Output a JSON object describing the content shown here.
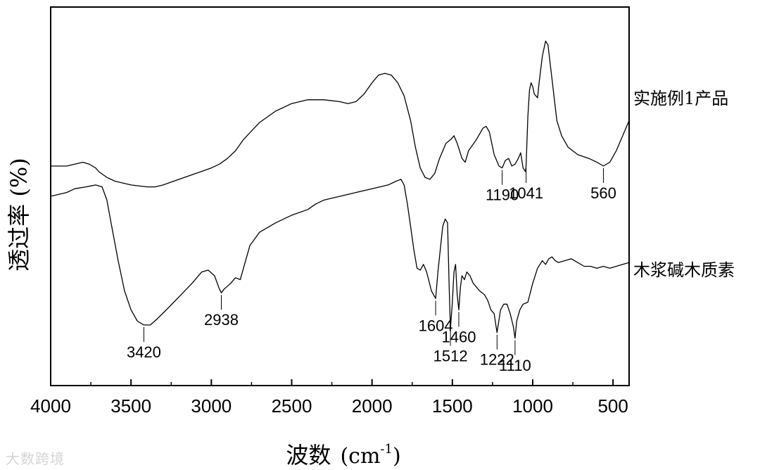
{
  "chart_data": {
    "type": "line",
    "x_range": [
      4000,
      400
    ],
    "x_ticks": [
      4000,
      3500,
      3000,
      2500,
      2000,
      1500,
      1000,
      500
    ],
    "xlabel_main": "波数",
    "xlabel_unit": "(cm",
    "xlabel_sup": "-1",
    "xlabel_close": ")",
    "ylabel": "透过率 (%)",
    "grid": false,
    "series": [
      {
        "name": "实施例1产品",
        "points": [
          [
            4000,
            0.58
          ],
          [
            3900,
            0.58
          ],
          [
            3800,
            0.59
          ],
          [
            3760,
            0.585
          ],
          [
            3720,
            0.575
          ],
          [
            3700,
            0.565
          ],
          [
            3650,
            0.55
          ],
          [
            3600,
            0.54
          ],
          [
            3500,
            0.53
          ],
          [
            3400,
            0.525
          ],
          [
            3350,
            0.525
          ],
          [
            3300,
            0.53
          ],
          [
            3200,
            0.545
          ],
          [
            3100,
            0.56
          ],
          [
            3000,
            0.575
          ],
          [
            2950,
            0.585
          ],
          [
            2900,
            0.6
          ],
          [
            2850,
            0.62
          ],
          [
            2800,
            0.65
          ],
          [
            2700,
            0.695
          ],
          [
            2600,
            0.725
          ],
          [
            2500,
            0.745
          ],
          [
            2400,
            0.755
          ],
          [
            2300,
            0.755
          ],
          [
            2200,
            0.75
          ],
          [
            2150,
            0.745
          ],
          [
            2100,
            0.75
          ],
          [
            2050,
            0.77
          ],
          [
            2000,
            0.8
          ],
          [
            1960,
            0.82
          ],
          [
            1920,
            0.825
          ],
          [
            1880,
            0.82
          ],
          [
            1840,
            0.8
          ],
          [
            1800,
            0.765
          ],
          [
            1760,
            0.7
          ],
          [
            1730,
            0.63
          ],
          [
            1700,
            0.575
          ],
          [
            1670,
            0.55
          ],
          [
            1640,
            0.545
          ],
          [
            1610,
            0.56
          ],
          [
            1580,
            0.6
          ],
          [
            1540,
            0.64
          ],
          [
            1510,
            0.65
          ],
          [
            1490,
            0.66
          ],
          [
            1470,
            0.64
          ],
          [
            1440,
            0.6
          ],
          [
            1420,
            0.59
          ],
          [
            1400,
            0.62
          ],
          [
            1350,
            0.65
          ],
          [
            1310,
            0.68
          ],
          [
            1290,
            0.685
          ],
          [
            1270,
            0.67
          ],
          [
            1240,
            0.61
          ],
          [
            1210,
            0.58
          ],
          [
            1190,
            0.575
          ],
          [
            1170,
            0.595
          ],
          [
            1150,
            0.6
          ],
          [
            1130,
            0.58
          ],
          [
            1110,
            0.585
          ],
          [
            1090,
            0.6
          ],
          [
            1075,
            0.615
          ],
          [
            1060,
            0.575
          ],
          [
            1045,
            0.565
          ],
          [
            1041,
            0.58
          ],
          [
            1030,
            0.71
          ],
          [
            1020,
            0.78
          ],
          [
            1010,
            0.8
          ],
          [
            1000,
            0.79
          ],
          [
            990,
            0.77
          ],
          [
            970,
            0.76
          ],
          [
            960,
            0.8
          ],
          [
            940,
            0.87
          ],
          [
            920,
            0.91
          ],
          [
            905,
            0.9
          ],
          [
            880,
            0.81
          ],
          [
            850,
            0.7
          ],
          [
            820,
            0.66
          ],
          [
            780,
            0.63
          ],
          [
            720,
            0.61
          ],
          [
            650,
            0.6
          ],
          [
            600,
            0.59
          ],
          [
            560,
            0.58
          ],
          [
            520,
            0.59
          ],
          [
            480,
            0.62
          ],
          [
            440,
            0.66
          ],
          [
            400,
            0.7
          ]
        ],
        "color": "#000000"
      },
      {
        "name": "木浆碱木质素",
        "points": [
          [
            4000,
            0.5
          ],
          [
            3950,
            0.505
          ],
          [
            3900,
            0.51
          ],
          [
            3850,
            0.52
          ],
          [
            3780,
            0.525
          ],
          [
            3720,
            0.53
          ],
          [
            3680,
            0.525
          ],
          [
            3650,
            0.49
          ],
          [
            3620,
            0.42
          ],
          [
            3580,
            0.33
          ],
          [
            3540,
            0.25
          ],
          [
            3500,
            0.2
          ],
          [
            3460,
            0.17
          ],
          [
            3420,
            0.16
          ],
          [
            3380,
            0.16
          ],
          [
            3340,
            0.175
          ],
          [
            3280,
            0.2
          ],
          [
            3200,
            0.235
          ],
          [
            3120,
            0.27
          ],
          [
            3060,
            0.3
          ],
          [
            3020,
            0.305
          ],
          [
            2980,
            0.29
          ],
          [
            2950,
            0.255
          ],
          [
            2938,
            0.245
          ],
          [
            2920,
            0.255
          ],
          [
            2880,
            0.27
          ],
          [
            2850,
            0.285
          ],
          [
            2820,
            0.28
          ],
          [
            2800,
            0.31
          ],
          [
            2760,
            0.37
          ],
          [
            2700,
            0.405
          ],
          [
            2600,
            0.43
          ],
          [
            2500,
            0.45
          ],
          [
            2400,
            0.465
          ],
          [
            2350,
            0.48
          ],
          [
            2300,
            0.49
          ],
          [
            2200,
            0.5
          ],
          [
            2100,
            0.51
          ],
          [
            2000,
            0.52
          ],
          [
            1900,
            0.53
          ],
          [
            1850,
            0.54
          ],
          [
            1820,
            0.545
          ],
          [
            1800,
            0.53
          ],
          [
            1780,
            0.48
          ],
          [
            1760,
            0.42
          ],
          [
            1740,
            0.36
          ],
          [
            1720,
            0.31
          ],
          [
            1700,
            0.305
          ],
          [
            1680,
            0.32
          ],
          [
            1660,
            0.3
          ],
          [
            1630,
            0.25
          ],
          [
            1604,
            0.23
          ],
          [
            1590,
            0.3
          ],
          [
            1575,
            0.36
          ],
          [
            1560,
            0.42
          ],
          [
            1545,
            0.44
          ],
          [
            1530,
            0.43
          ],
          [
            1520,
            0.26
          ],
          [
            1512,
            0.15
          ],
          [
            1500,
            0.22
          ],
          [
            1490,
            0.3
          ],
          [
            1480,
            0.32
          ],
          [
            1470,
            0.24
          ],
          [
            1460,
            0.2
          ],
          [
            1450,
            0.26
          ],
          [
            1440,
            0.29
          ],
          [
            1425,
            0.28
          ],
          [
            1410,
            0.3
          ],
          [
            1390,
            0.29
          ],
          [
            1370,
            0.27
          ],
          [
            1350,
            0.26
          ],
          [
            1330,
            0.25
          ],
          [
            1300,
            0.24
          ],
          [
            1280,
            0.225
          ],
          [
            1260,
            0.2
          ],
          [
            1240,
            0.19
          ],
          [
            1222,
            0.14
          ],
          [
            1200,
            0.2
          ],
          [
            1180,
            0.215
          ],
          [
            1160,
            0.215
          ],
          [
            1140,
            0.19
          ],
          [
            1120,
            0.155
          ],
          [
            1110,
            0.125
          ],
          [
            1100,
            0.17
          ],
          [
            1080,
            0.2
          ],
          [
            1060,
            0.215
          ],
          [
            1030,
            0.22
          ],
          [
            1000,
            0.27
          ],
          [
            970,
            0.31
          ],
          [
            940,
            0.33
          ],
          [
            920,
            0.32
          ],
          [
            900,
            0.335
          ],
          [
            880,
            0.34
          ],
          [
            860,
            0.33
          ],
          [
            840,
            0.325
          ],
          [
            800,
            0.33
          ],
          [
            760,
            0.335
          ],
          [
            720,
            0.325
          ],
          [
            680,
            0.315
          ],
          [
            640,
            0.315
          ],
          [
            600,
            0.31
          ],
          [
            560,
            0.315
          ],
          [
            520,
            0.31
          ],
          [
            480,
            0.315
          ],
          [
            440,
            0.32
          ],
          [
            400,
            0.325
          ]
        ],
        "color": "#000000"
      }
    ],
    "annotations": [
      {
        "text": "1190",
        "x": 1190,
        "series": 0
      },
      {
        "text": "1041",
        "x": 1041,
        "series": 0
      },
      {
        "text": "560",
        "x": 560,
        "series": 0
      },
      {
        "text": "3420",
        "x": 3420,
        "series": 1
      },
      {
        "text": "2938",
        "x": 2938,
        "series": 1
      },
      {
        "text": "1604",
        "x": 1604,
        "series": 1
      },
      {
        "text": "1512",
        "x": 1512,
        "series": 1
      },
      {
        "text": "1460",
        "x": 1460,
        "series": 1
      },
      {
        "text": "1222",
        "x": 1222,
        "series": 1
      },
      {
        "text": "1110",
        "x": 1110,
        "series": 1
      }
    ]
  },
  "watermark": "大数跨境"
}
